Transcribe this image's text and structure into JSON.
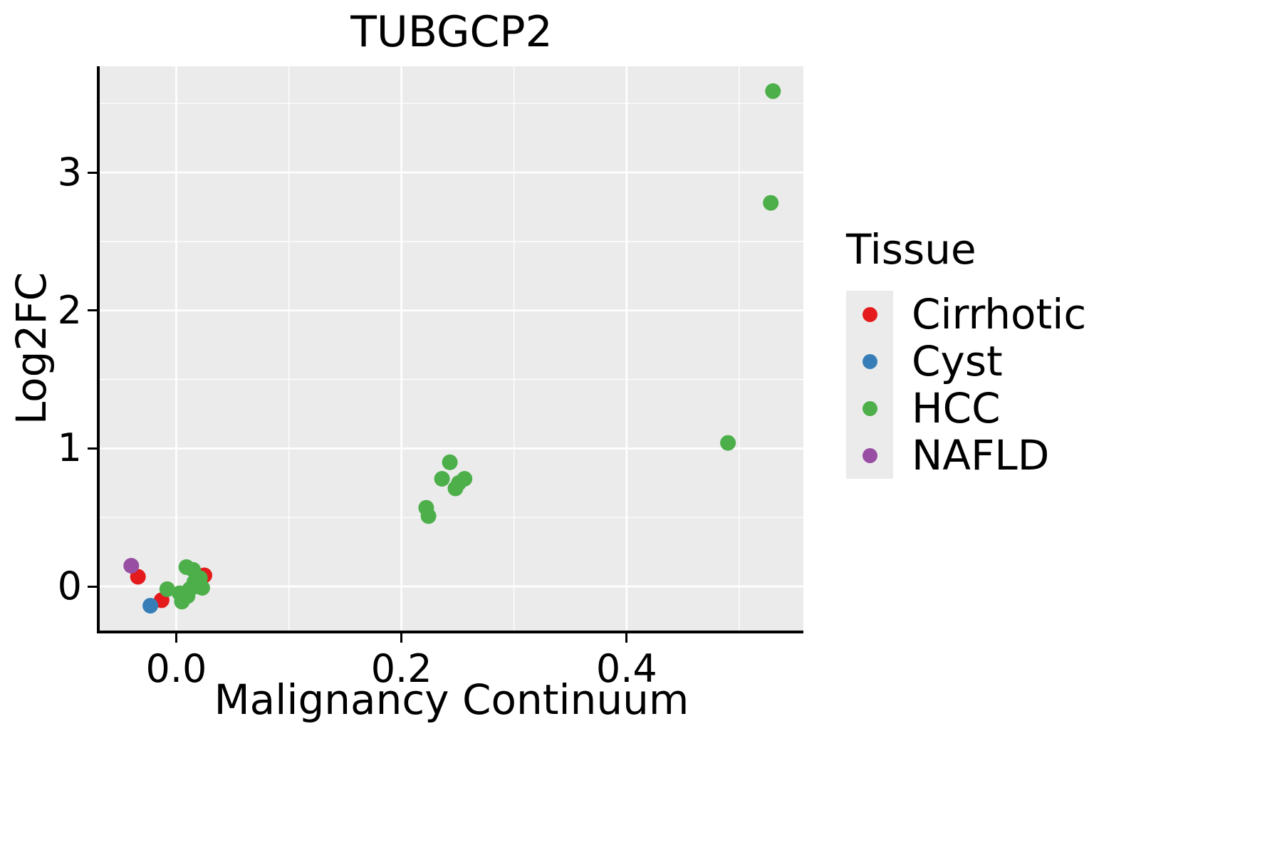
{
  "chart": {
    "title": "TUBGCP2",
    "xlabel": "Malignancy Continuum",
    "ylabel": "Log2FC"
  },
  "legend": {
    "title": "Tissue",
    "items": [
      {
        "label": "Cirrhotic",
        "color": "#E41A1C"
      },
      {
        "label": "Cyst",
        "color": "#377EB8"
      },
      {
        "label": "HCC",
        "color": "#4DAF4A"
      },
      {
        "label": "NAFLD",
        "color": "#984EA3"
      }
    ]
  },
  "chart_data": {
    "type": "scatter",
    "title": "TUBGCP2",
    "xlabel": "Malignancy Continuum",
    "ylabel": "Log2FC",
    "xlim": [
      -0.068,
      0.557
    ],
    "ylim": [
      -0.32,
      3.77
    ],
    "x_ticks": [
      0.0,
      0.2,
      0.4
    ],
    "x_tick_labels": [
      "0.0",
      "0.2",
      "0.4"
    ],
    "y_ticks": [
      0,
      1,
      2,
      3
    ],
    "y_tick_labels": [
      "0",
      "1",
      "2",
      "3"
    ],
    "x_minor_ticks": [
      0.1,
      0.3,
      0.5
    ],
    "y_minor_ticks": [
      0.5,
      1.5,
      2.5,
      3.5
    ],
    "grid": true,
    "panel_background": "#EBEBEB",
    "grid_color": "#FFFFFF",
    "legend_position": "right",
    "point_radius": 11,
    "series": [
      {
        "name": "Cirrhotic",
        "color": "#E41A1C",
        "points": [
          [
            -0.034,
            0.07
          ],
          [
            -0.013,
            -0.1
          ],
          [
            0.025,
            0.08
          ]
        ]
      },
      {
        "name": "Cyst",
        "color": "#377EB8",
        "points": [
          [
            -0.023,
            -0.14
          ]
        ]
      },
      {
        "name": "HCC",
        "color": "#4DAF4A",
        "points": [
          [
            0.53,
            3.59
          ],
          [
            0.528,
            2.78
          ],
          [
            0.49,
            1.04
          ],
          [
            0.236,
            0.78
          ],
          [
            0.243,
            0.9
          ],
          [
            0.248,
            0.71
          ],
          [
            0.256,
            0.78
          ],
          [
            0.251,
            0.75
          ],
          [
            0.222,
            0.57
          ],
          [
            0.224,
            0.51
          ],
          [
            -0.008,
            -0.02
          ],
          [
            0.003,
            -0.05
          ],
          [
            0.005,
            -0.11
          ],
          [
            0.009,
            0.14
          ],
          [
            0.01,
            -0.07
          ],
          [
            0.012,
            -0.02
          ],
          [
            0.015,
            0.12
          ],
          [
            0.016,
            0.03
          ],
          [
            0.018,
            0.0
          ],
          [
            0.021,
            0.06
          ],
          [
            0.023,
            -0.01
          ]
        ]
      },
      {
        "name": "NAFLD",
        "color": "#984EA3",
        "points": [
          [
            -0.04,
            0.15
          ]
        ]
      }
    ]
  }
}
